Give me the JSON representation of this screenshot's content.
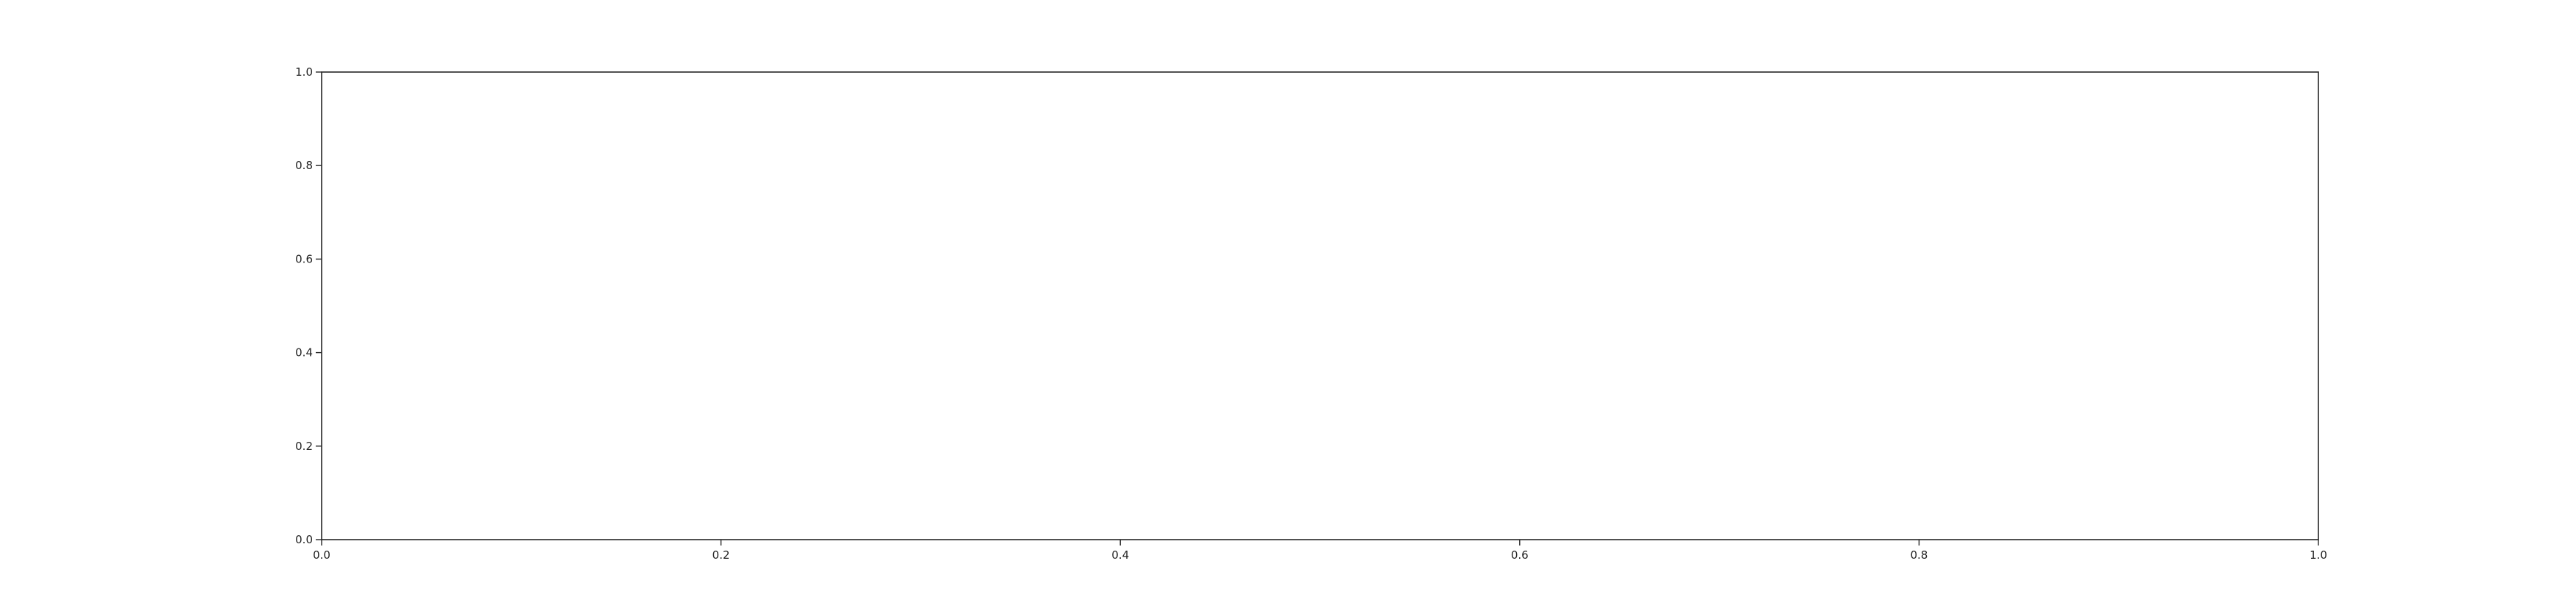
{
  "chart_data": {
    "type": "line",
    "title": "",
    "xlabel": "",
    "ylabel": "",
    "xlim": [
      0,
      1
    ],
    "ylim": [
      0,
      1
    ],
    "grid": false,
    "series": [],
    "x_ticks": [
      {
        "value": 0.0,
        "label": "0.0"
      },
      {
        "value": 0.2,
        "label": "0.2"
      },
      {
        "value": 0.4,
        "label": "0.4"
      },
      {
        "value": 0.6,
        "label": "0.6"
      },
      {
        "value": 0.8,
        "label": "0.8"
      },
      {
        "value": 1.0,
        "label": "1.0"
      }
    ],
    "y_ticks": [
      {
        "value": 0.0,
        "label": "0.0"
      },
      {
        "value": 0.2,
        "label": "0.2"
      },
      {
        "value": 0.4,
        "label": "0.4"
      },
      {
        "value": 0.6,
        "label": "0.6"
      },
      {
        "value": 0.8,
        "label": "0.8"
      },
      {
        "value": 1.0,
        "label": "1.0"
      }
    ],
    "colors": {
      "axis": "#262626",
      "text": "#222222",
      "background": "#ffffff"
    }
  }
}
